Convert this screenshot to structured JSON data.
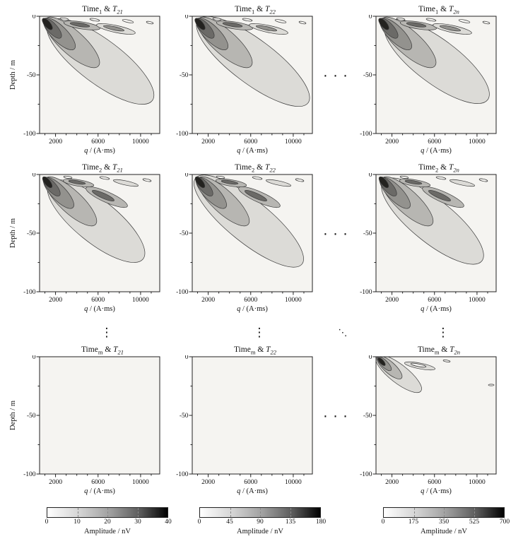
{
  "chart_data": {
    "type": "heatmap",
    "subtype": "contour-grid",
    "description": "3 x n grid of kernel amplitude contour maps. Rows correspond to time windows (Time 1, Time 2, ..., Time m), columns to relaxation components (T21, T22, ..., T2n). Each panel maps amplitude over pulse moment q versus depth; a dark high-amplitude core sits at shallow depth / low q with a light gray lobe trailing to deeper / higher q. Bottom row columns 1-2 show no signal; column maxima given by the three colorbars (40, 180, 700 nV).",
    "x_axis": {
      "label_var": "q",
      "label_rest": " / (A·ms)",
      "range": [
        500,
        11800
      ],
      "ticks": [
        2000,
        6000,
        10000
      ],
      "tick_labels": [
        "2000",
        "6000",
        "10000"
      ],
      "minor_tick_step": 1000
    },
    "y_axis": {
      "label": "Depth / m",
      "range": [
        -100,
        0
      ],
      "ticks": [
        0,
        -50,
        -100
      ],
      "tick_labels": [
        "0",
        "-50",
        "-100"
      ],
      "minor_ticks": [
        -25,
        -75
      ]
    },
    "panels": [
      {
        "title": {
          "time_text": "Time",
          "time_sub": "1",
          "joiner": " & ",
          "t_text": "T",
          "t_sub": "21"
        },
        "pattern": "full-a",
        "tail": 1.0,
        "has_ylabel": true
      },
      {
        "title": {
          "time_text": "Time",
          "time_sub": "1",
          "joiner": " & ",
          "t_text": "T",
          "t_sub": "22"
        },
        "pattern": "full-a",
        "tail": 1.06,
        "has_ylabel": false
      },
      {
        "title": {
          "time_text": "Time",
          "time_sub": "1",
          "joiner": " & ",
          "t_text": "T",
          "t_sub": "2n"
        },
        "pattern": "full-a",
        "tail": 0.98,
        "has_ylabel": false
      },
      {
        "title": {
          "time_text": "Time",
          "time_sub": "2",
          "joiner": " & ",
          "t_text": "T",
          "t_sub": "21"
        },
        "pattern": "full-b",
        "tail": 0.97,
        "has_ylabel": true
      },
      {
        "title": {
          "time_text": "Time",
          "time_sub": "2",
          "joiner": " & ",
          "t_text": "T",
          "t_sub": "22"
        },
        "pattern": "full-b",
        "tail": 1.1,
        "has_ylabel": false
      },
      {
        "title": {
          "time_text": "Time",
          "time_sub": "2",
          "joiner": " & ",
          "t_text": "T",
          "t_sub": "2n"
        },
        "pattern": "full-b",
        "tail": 1.02,
        "has_ylabel": false
      },
      {
        "title": {
          "time_text": "Time",
          "time_sub": "m",
          "joiner": " & ",
          "t_text": "T",
          "t_sub": "21"
        },
        "pattern": "blank",
        "tail": 1.0,
        "has_ylabel": true
      },
      {
        "title": {
          "time_text": "Time",
          "time_sub": "m",
          "joiner": " & ",
          "t_text": "T",
          "t_sub": "22"
        },
        "pattern": "blank",
        "tail": 1.0,
        "has_ylabel": false
      },
      {
        "title": {
          "time_text": "Time",
          "time_sub": "m",
          "joiner": " & ",
          "t_text": "T",
          "t_sub": "2n"
        },
        "pattern": "small",
        "tail": 1.0,
        "has_ylabel": false
      }
    ],
    "colorbars": [
      {
        "label": "Amplitude / nV",
        "min": 0,
        "max": 40,
        "ticks": [
          0,
          10,
          20,
          30,
          40
        ],
        "tick_labels": [
          "0",
          "10",
          "20",
          "30",
          "40"
        ]
      },
      {
        "label": "Amplitude / nV",
        "min": 0,
        "max": 180,
        "ticks": [
          0,
          45,
          90,
          135,
          180
        ],
        "tick_labels": [
          "0",
          "45",
          "90",
          "135",
          "180"
        ]
      },
      {
        "label": "Amplitude / nV",
        "min": 0,
        "max": 700,
        "ticks": [
          0,
          175,
          350,
          525,
          700
        ],
        "tick_labels": [
          "0",
          "175",
          "350",
          "525",
          "700"
        ]
      }
    ],
    "palette": {
      "background": "#f5f4f1",
      "levels": [
        "#dcdbd7",
        "#b7b6b2",
        "#93928e",
        "#6b6a67",
        "#23221f"
      ],
      "contour_line": "#3a3a3a"
    },
    "ellipses": {
      "horizontal": "· · ·",
      "vertical": "⋮",
      "diagonal": "⋱"
    }
  }
}
